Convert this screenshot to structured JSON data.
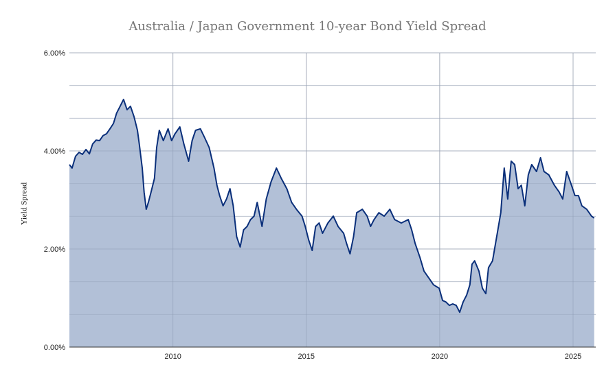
{
  "chart_data": {
    "type": "area",
    "title": "Australia / Japan Government 10-year Bond Yield Spread",
    "xlabel": "",
    "ylabel": "Yield Spread",
    "xlim": [
      2006.12,
      2025.85
    ],
    "ylim": [
      0,
      6
    ],
    "x_ticks": [
      "2010",
      "2015",
      "2020",
      "2025"
    ],
    "y_ticks": [
      "0.00%",
      "2.00%",
      "4.00%",
      "6.00%"
    ],
    "grid": true,
    "legend": "none",
    "colors": {
      "line": "#0a2f7a",
      "fill": "#b2c0d7"
    },
    "series": [
      {
        "x": [
          2006.12,
          2006.22,
          2006.35,
          2006.48,
          2006.61,
          2006.74,
          2006.87,
          2006.99,
          2007.12,
          2007.25,
          2007.38,
          2007.51,
          2007.64,
          2007.77,
          2007.89,
          2008.02,
          2008.15,
          2008.28,
          2008.41,
          2008.54,
          2008.67,
          2008.74,
          2008.85,
          2008.92,
          2009.0,
          2009.08,
          2009.18,
          2009.31,
          2009.39,
          2009.49,
          2009.64,
          2009.82,
          2009.95,
          2010.08,
          2010.26,
          2010.41,
          2010.59,
          2010.72,
          2010.85,
          2011.03,
          2011.18,
          2011.36,
          2011.54,
          2011.65,
          2011.75,
          2011.88,
          2012.01,
          2012.14,
          2012.26,
          2012.39,
          2012.52,
          2012.65,
          2012.78,
          2012.91,
          2013.04,
          2013.16,
          2013.34,
          2013.5,
          2013.68,
          2013.88,
          2014.06,
          2014.27,
          2014.45,
          2014.63,
          2014.84,
          2014.96,
          2015.09,
          2015.22,
          2015.35,
          2015.48,
          2015.61,
          2015.81,
          2016.01,
          2016.19,
          2016.4,
          2016.51,
          2016.64,
          2016.77,
          2016.89,
          2017.1,
          2017.28,
          2017.41,
          2017.54,
          2017.72,
          2017.92,
          2018.13,
          2018.31,
          2018.56,
          2018.82,
          2018.95,
          2019.08,
          2019.26,
          2019.41,
          2019.59,
          2019.77,
          2019.98,
          2020.11,
          2020.23,
          2020.36,
          2020.49,
          2020.62,
          2020.75,
          2020.88,
          2021.01,
          2021.13,
          2021.21,
          2021.31,
          2021.47,
          2021.6,
          2021.73,
          2021.83,
          2021.98,
          2022.16,
          2022.29,
          2022.42,
          2022.55,
          2022.68,
          2022.81,
          2022.94,
          2023.06,
          2023.19,
          2023.32,
          2023.45,
          2023.63,
          2023.78,
          2023.91,
          2024.09,
          2024.3,
          2024.48,
          2024.61,
          2024.76,
          2024.94,
          2025.07,
          2025.2,
          2025.33,
          2025.51,
          2025.69,
          2025.79
        ],
        "y": [
          3.72,
          3.65,
          3.89,
          3.97,
          3.93,
          4.03,
          3.94,
          4.14,
          4.22,
          4.21,
          4.31,
          4.35,
          4.45,
          4.56,
          4.77,
          4.91,
          5.05,
          4.84,
          4.91,
          4.7,
          4.42,
          4.14,
          3.65,
          3.16,
          2.81,
          2.95,
          3.16,
          3.44,
          4.07,
          4.42,
          4.21,
          4.45,
          4.21,
          4.35,
          4.49,
          4.14,
          3.79,
          4.21,
          4.42,
          4.45,
          4.28,
          4.07,
          3.65,
          3.3,
          3.09,
          2.88,
          3.02,
          3.23,
          2.88,
          2.25,
          2.04,
          2.39,
          2.46,
          2.6,
          2.67,
          2.95,
          2.46,
          3.02,
          3.37,
          3.65,
          3.44,
          3.23,
          2.95,
          2.81,
          2.67,
          2.46,
          2.18,
          1.97,
          2.46,
          2.53,
          2.32,
          2.53,
          2.67,
          2.46,
          2.32,
          2.11,
          1.9,
          2.25,
          2.74,
          2.81,
          2.67,
          2.46,
          2.6,
          2.74,
          2.67,
          2.81,
          2.6,
          2.53,
          2.6,
          2.39,
          2.11,
          1.83,
          1.55,
          1.41,
          1.27,
          1.2,
          0.95,
          0.92,
          0.85,
          0.88,
          0.85,
          0.71,
          0.92,
          1.06,
          1.27,
          1.69,
          1.76,
          1.55,
          1.2,
          1.09,
          1.62,
          1.76,
          2.32,
          2.74,
          3.65,
          3.02,
          3.79,
          3.72,
          3.23,
          3.3,
          2.88,
          3.51,
          3.72,
          3.58,
          3.86,
          3.58,
          3.51,
          3.3,
          3.16,
          3.02,
          3.58,
          3.3,
          3.09,
          3.09,
          2.88,
          2.81,
          2.67,
          2.63
        ]
      }
    ]
  }
}
